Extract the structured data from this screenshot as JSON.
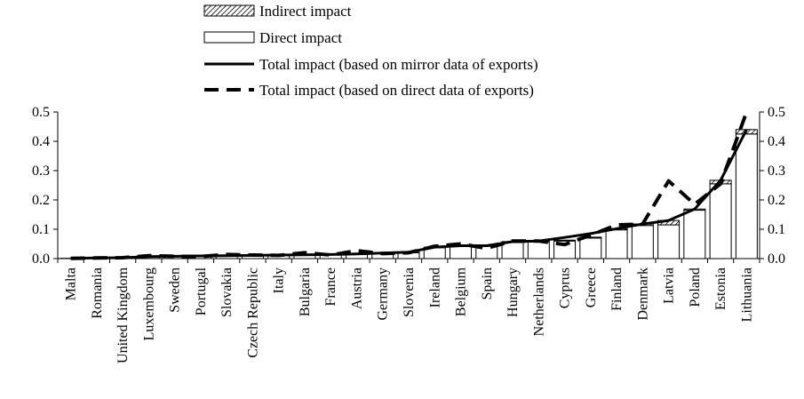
{
  "chart_data": {
    "type": "bar",
    "title": "",
    "xlabel": "",
    "ylabel": "",
    "ylim": [
      0,
      0.5
    ],
    "yticks": [
      "0.0",
      "0.1",
      "0.2",
      "0.3",
      "0.4",
      "0.5"
    ],
    "secondary_y_axis": true,
    "grid": false,
    "legend_placement": "top-center",
    "categories": [
      "Malta",
      "Romania",
      "United Kingdom",
      "Luxembourg",
      "Sweden",
      "Portugal",
      "Slovakia",
      "Czech Republic",
      "Italy",
      "Bulgaria",
      "France",
      "Austria",
      "Germany",
      "Slovenia",
      "Ireland",
      "Belgium",
      "Spain",
      "Hungary",
      "Netherlands",
      "Cyprus",
      "Greece",
      "Finland",
      "Denmark",
      "Latvia",
      "Poland",
      "Estonia",
      "Lithuania"
    ],
    "series": [
      {
        "name": "Indirect impact",
        "kind": "bar-stacked-top",
        "values": [
          0,
          0,
          0,
          0.001,
          0.001,
          0.001,
          0.001,
          0.001,
          0.001,
          0.001,
          0.001,
          0.001,
          0.002,
          0.002,
          0.002,
          0.002,
          0.002,
          0.003,
          0.003,
          0.003,
          0.003,
          0.004,
          0.005,
          0.015,
          0.004,
          0.012,
          0.015
        ]
      },
      {
        "name": "Direct impact",
        "kind": "bar",
        "values": [
          0.001,
          0.002,
          0.003,
          0.006,
          0.007,
          0.008,
          0.009,
          0.01,
          0.011,
          0.012,
          0.013,
          0.015,
          0.017,
          0.02,
          0.037,
          0.042,
          0.042,
          0.055,
          0.057,
          0.06,
          0.07,
          0.098,
          0.113,
          0.115,
          0.165,
          0.255,
          0.425
        ]
      },
      {
        "name": "Total impact (based on mirror data of exports)",
        "kind": "line-solid",
        "values": [
          0.001,
          0.002,
          0.003,
          0.007,
          0.008,
          0.009,
          0.01,
          0.011,
          0.012,
          0.013,
          0.014,
          0.016,
          0.019,
          0.022,
          0.039,
          0.044,
          0.044,
          0.058,
          0.06,
          0.072,
          0.085,
          0.102,
          0.118,
          0.13,
          0.169,
          0.267,
          0.44
        ]
      },
      {
        "name": "Total impact (based on direct data of exports)",
        "kind": "line-dashed",
        "values": [
          0.001,
          0.002,
          0.003,
          0.01,
          0.008,
          0.007,
          0.014,
          0.012,
          0.011,
          0.02,
          0.012,
          0.027,
          0.017,
          0.02,
          0.042,
          0.05,
          0.035,
          0.06,
          0.06,
          0.048,
          0.08,
          0.115,
          0.118,
          0.265,
          0.185,
          0.255,
          0.5
        ]
      }
    ]
  }
}
